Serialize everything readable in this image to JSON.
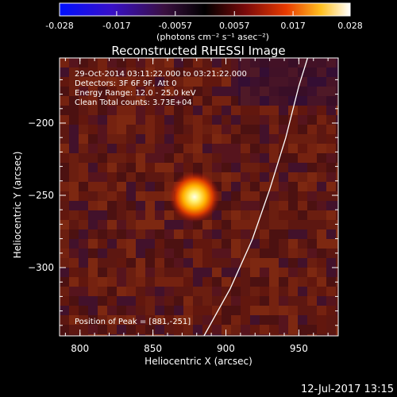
{
  "colorbar": {
    "ticks": [
      "-0.028",
      "-0.017",
      "-0.0057",
      "0.0057",
      "0.017",
      "0.028"
    ],
    "tick_values": [
      -0.028,
      -0.017,
      -0.0057,
      0.0057,
      0.017,
      0.028
    ],
    "range": [
      -0.028,
      0.028
    ],
    "units_label": "(photons cm⁻² s⁻¹ asec⁻²)"
  },
  "plot": {
    "title": "Reconstructed RHESSI Image",
    "xlabel": "Heliocentric X (arcsec)",
    "ylabel": "Heliocentric Y (arcsec)",
    "annotations": [
      "29-Oct-2014 03:11:22.000 to 03:21:22.000",
      "Detectors: 3F 6F 9F, Att 0",
      "Energy Range: 12.0 - 25.0 keV",
      "Clean     Total counts: 3.73E+04"
    ],
    "peak_label": "Position of Peak = [881,-251]"
  },
  "footer": {
    "date": "12-Jul-2017 13:15"
  },
  "chart_data": {
    "type": "heatmap",
    "title": "Reconstructed RHESSI Image",
    "xlabel": "Heliocentric X (arcsec)",
    "ylabel": "Heliocentric Y (arcsec)",
    "xlim": [
      787,
      978
    ],
    "ylim": [
      -352,
      -164
    ],
    "xticks": [
      800,
      850,
      900,
      950
    ],
    "yticks": [
      -200,
      -250,
      -300
    ],
    "peak": {
      "x": 881,
      "y": -251
    },
    "limb_curve": [
      {
        "x": 900,
        "y": -352
      },
      {
        "x": 918,
        "y": -320
      },
      {
        "x": 933,
        "y": -287
      },
      {
        "x": 945,
        "y": -253
      },
      {
        "x": 956,
        "y": -218
      },
      {
        "x": 965,
        "y": -183
      },
      {
        "x": 971,
        "y": -164
      }
    ],
    "colorbar_range": [
      -0.028,
      0.028
    ],
    "colormap": "blue-purple-red-yellow-white",
    "grid": false
  }
}
